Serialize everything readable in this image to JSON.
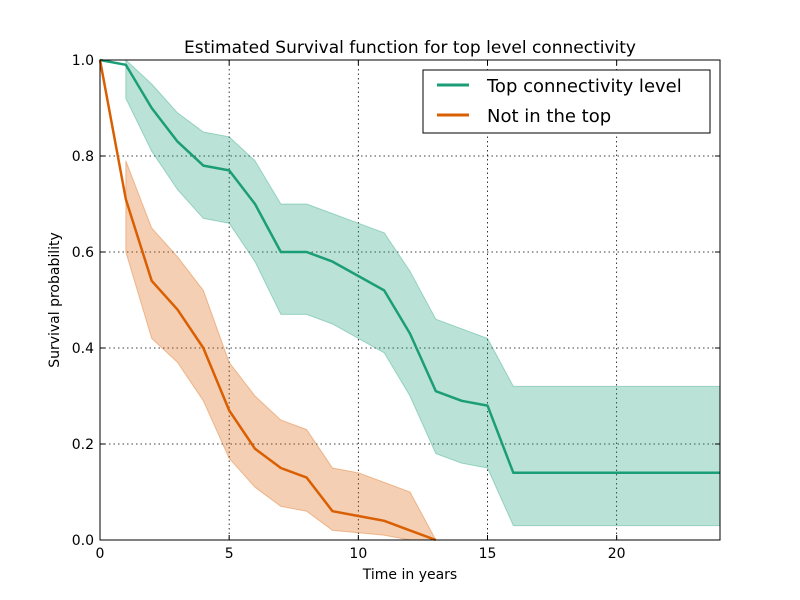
{
  "chart_data": {
    "type": "line",
    "title": "Estimated Survival function for top level connectivity",
    "xlabel": "Time in years",
    "ylabel": "Survival probability",
    "xlim": [
      0,
      24
    ],
    "ylim": [
      0,
      1.0
    ],
    "x_ticks": [
      0,
      5,
      10,
      15,
      20
    ],
    "x_tick_labels": [
      "0",
      "5",
      "10",
      "15",
      "20"
    ],
    "y_ticks": [
      0.0,
      0.2,
      0.4,
      0.6,
      0.8,
      1.0
    ],
    "y_tick_labels": [
      "0.0",
      "0.2",
      "0.4",
      "0.6",
      "0.8",
      "1.0"
    ],
    "grid": true,
    "legend_position": "top-right",
    "series": [
      {
        "name": "Top connectivity level",
        "color": "#1b9e77",
        "x": [
          0,
          1,
          2,
          3,
          4,
          5,
          6,
          7,
          8,
          9,
          10,
          11,
          12,
          13,
          14,
          15,
          16,
          17,
          18,
          19,
          20,
          21,
          22,
          23,
          24
        ],
        "y": [
          1.0,
          0.99,
          0.9,
          0.83,
          0.78,
          0.77,
          0.7,
          0.6,
          0.6,
          0.58,
          0.55,
          0.52,
          0.43,
          0.31,
          0.29,
          0.28,
          0.14,
          0.14,
          0.14,
          0.14,
          0.14,
          0.14,
          0.14,
          0.14,
          0.14
        ],
        "ci_x": [
          1,
          2,
          3,
          4,
          5,
          6,
          7,
          8,
          9,
          10,
          11,
          12,
          13,
          14,
          15,
          16,
          17,
          18,
          19,
          20,
          21,
          22,
          23,
          24
        ],
        "ci_lower": [
          0.92,
          0.81,
          0.73,
          0.67,
          0.66,
          0.58,
          0.47,
          0.47,
          0.45,
          0.42,
          0.39,
          0.3,
          0.18,
          0.16,
          0.15,
          0.03,
          0.03,
          0.03,
          0.03,
          0.03,
          0.03,
          0.03,
          0.03,
          0.03
        ],
        "ci_upper": [
          1.0,
          0.95,
          0.89,
          0.85,
          0.84,
          0.79,
          0.7,
          0.7,
          0.68,
          0.66,
          0.64,
          0.56,
          0.46,
          0.44,
          0.42,
          0.32,
          0.32,
          0.32,
          0.32,
          0.32,
          0.32,
          0.32,
          0.32,
          0.32
        ]
      },
      {
        "name": "Not in the top",
        "color": "#d95f02",
        "x": [
          0,
          1,
          2,
          3,
          4,
          5,
          6,
          7,
          8,
          9,
          10,
          11,
          12,
          13
        ],
        "y": [
          1.0,
          0.71,
          0.54,
          0.48,
          0.4,
          0.27,
          0.19,
          0.15,
          0.13,
          0.06,
          0.05,
          0.04,
          0.02,
          0.0
        ],
        "ci_x": [
          1,
          2,
          3,
          4,
          5,
          6,
          7,
          8,
          9,
          10,
          11,
          12,
          13
        ],
        "ci_lower": [
          0.6,
          0.42,
          0.37,
          0.29,
          0.17,
          0.11,
          0.07,
          0.06,
          0.02,
          0.015,
          0.01,
          0.0,
          0.0
        ],
        "ci_upper": [
          0.79,
          0.65,
          0.59,
          0.52,
          0.37,
          0.3,
          0.25,
          0.23,
          0.15,
          0.14,
          0.12,
          0.1,
          0.0
        ]
      }
    ]
  }
}
